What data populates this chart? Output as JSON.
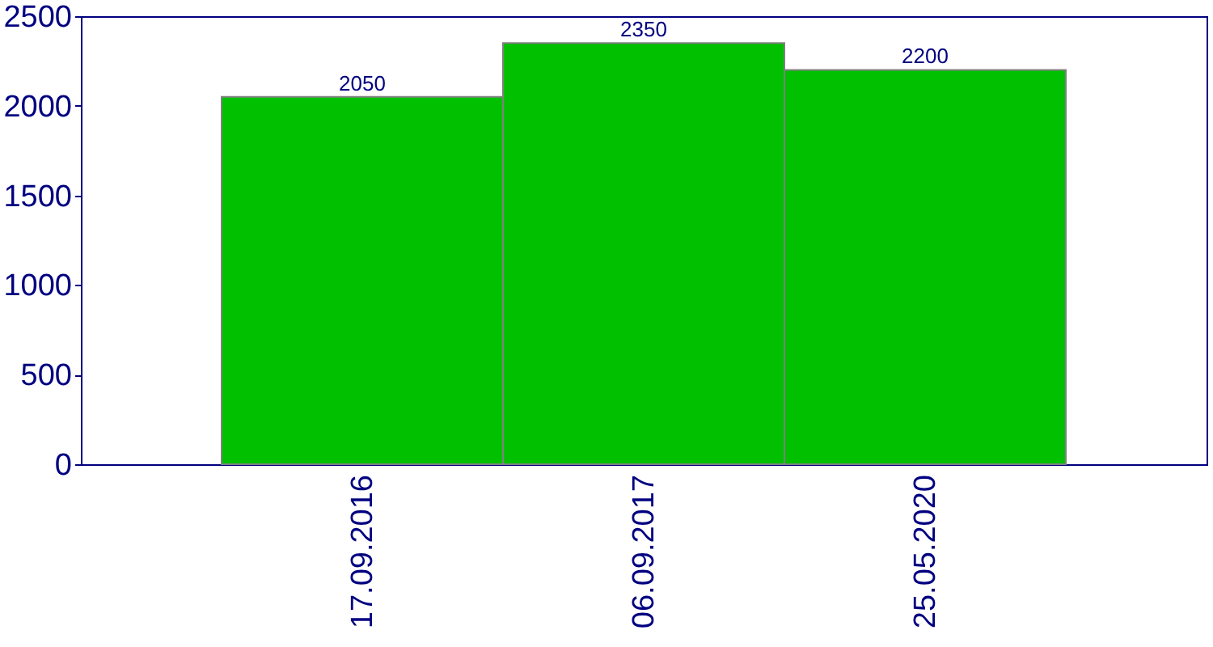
{
  "chart_data": {
    "type": "bar",
    "categories": [
      "17.09.2016",
      "06.09.2017",
      "25.05.2020"
    ],
    "values": [
      2050,
      2350,
      2200
    ],
    "color": "#00c000",
    "ylim": [
      0,
      2500
    ],
    "yticks": [
      0,
      500,
      1000,
      1500,
      2000,
      2500
    ],
    "data_labels": true
  }
}
